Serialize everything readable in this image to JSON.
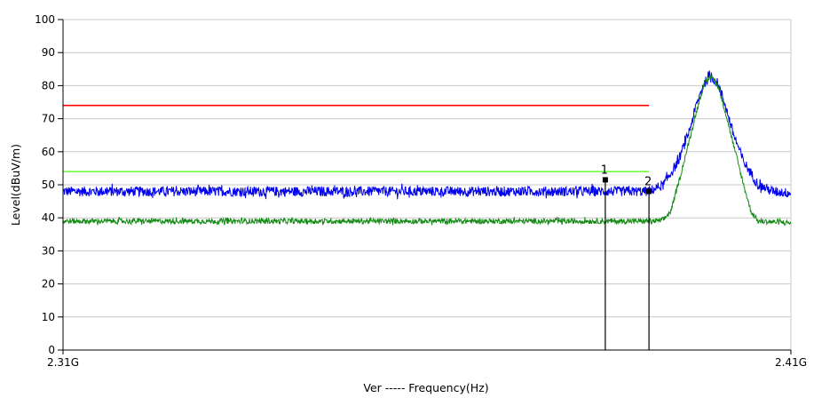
{
  "chart_data": {
    "type": "line",
    "title": "",
    "xlabel": "Ver ----- Frequency(Hz)",
    "ylabel": "Level(dBuV/m)",
    "xlim": [
      2.31,
      2.41
    ],
    "ylim": [
      0,
      100
    ],
    "x_unit": "GHz",
    "x_tick_labels": [
      "2.31G",
      "2.41G"
    ],
    "y_ticks": [
      0,
      10,
      20,
      30,
      40,
      50,
      60,
      70,
      80,
      90,
      100
    ],
    "grid": true,
    "legend": "none",
    "series": [
      {
        "color": "#0000ee",
        "noise_amplitude": 1.5,
        "x": [
          2.31,
          2.39,
          2.3905,
          2.3925,
          2.3945,
          2.396,
          2.397,
          2.398,
          2.399,
          2.4,
          2.401,
          2.402,
          2.4035,
          2.4055,
          2.4075,
          2.41
        ],
        "y": [
          48,
          48,
          48,
          50,
          57,
          66,
          74,
          80.5,
          83,
          80.5,
          74,
          66,
          57,
          50,
          48,
          47.5
        ]
      },
      {
        "color": "#138a13",
        "noise_amplitude": 0.8,
        "x": [
          2.31,
          2.3915,
          2.3925,
          2.3935,
          2.3945,
          2.396,
          2.397,
          2.398,
          2.399,
          2.4,
          2.401,
          2.402,
          2.4035,
          2.4045,
          2.4055,
          2.41
        ],
        "y": [
          39,
          39,
          39.5,
          42,
          50,
          63,
          72,
          80,
          83,
          80,
          72,
          63,
          50,
          42,
          39,
          38.5
        ]
      },
      {
        "color": "#ff0000",
        "x": [
          2.31,
          2.3905
        ],
        "y": [
          74,
          74
        ]
      },
      {
        "color": "#66ff33",
        "x": [
          2.31,
          2.3905
        ],
        "y": [
          54,
          54
        ]
      }
    ],
    "markers": [
      {
        "label": "1",
        "x": 2.3845,
        "y": 51.5
      },
      {
        "label": "2",
        "x": 2.3905,
        "y": 48
      }
    ]
  }
}
